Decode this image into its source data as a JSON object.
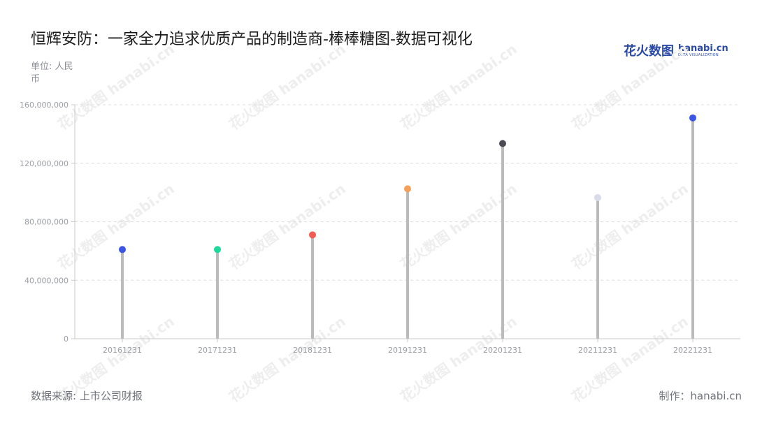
{
  "title": "恒辉安防：一家全力追求优质产品的制造商-棒棒糖图-数据可视化",
  "unit_label": "单位: 人民币",
  "source": "数据来源: 上市公司财报",
  "credit": "制作：hanabi.cn",
  "logo": {
    "cn": "花火数图",
    "en": "hanabi.cn",
    "sub": "DATA VISUALIZATION"
  },
  "watermark_text": "花火数图 hanabi.cn",
  "chart_data": {
    "type": "lollipop",
    "categories": [
      "20161231",
      "20171231",
      "20181231",
      "20191231",
      "20201231",
      "20211231",
      "20221231"
    ],
    "values": [
      61000000,
      61000000,
      71000000,
      102500000,
      133500000,
      96500000,
      151000000
    ],
    "dot_colors": [
      "#3b55e6",
      "#1ed99a",
      "#f25c54",
      "#f5a05a",
      "#4a4a55",
      "#d8dce8",
      "#3b55e6"
    ],
    "stem_color": "#bbbbbb",
    "ylim": [
      0,
      160000000
    ],
    "yticks": [
      0,
      40000000,
      80000000,
      120000000,
      160000000
    ],
    "ytick_labels": [
      "0",
      "40,000,000",
      "80,000,000",
      "120,000,000",
      "160,000,000"
    ],
    "grid": true
  }
}
